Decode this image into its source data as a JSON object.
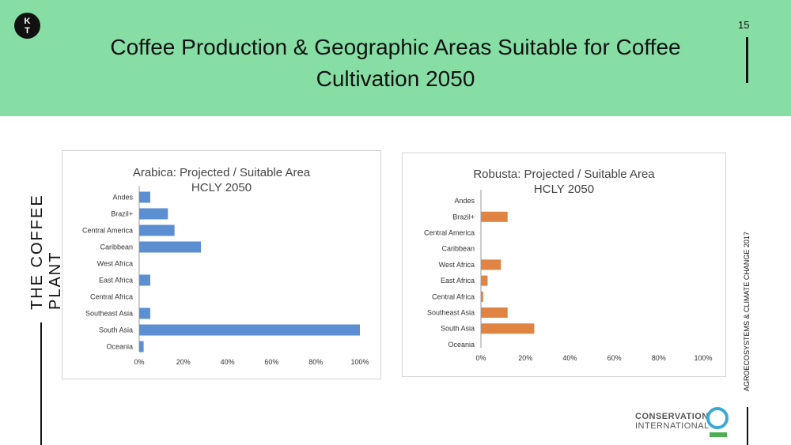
{
  "header": {
    "logo_line1": "K",
    "logo_line2": "T",
    "title": "Coffee Production & Geographic Areas Suitable for Coffee Cultivation 2050",
    "page_number": "15"
  },
  "sidebar": {
    "left_text": "THE COFFEE PLANT",
    "right_text": "AGROECOSYSTEMS & CLIMATE CHANGE 2017"
  },
  "footer_logo": {
    "line1": "CONSERVATION",
    "line2": "INTERNATIONAL"
  },
  "colors": {
    "header_bg": "#86dea5",
    "arabica_bar": "#5b8fd2",
    "robusta_bar": "#e08443"
  },
  "chart_data": [
    {
      "type": "bar",
      "orientation": "horizontal",
      "title_line1": "Arabica: Projected  / Suitable Area",
      "title_line2": "HCLY 2050",
      "categories": [
        "Andes",
        "Brazil+",
        "Central America",
        "Caribbean",
        "West Africa",
        "East Africa",
        "Central Africa",
        "Southeast Asia",
        "South Asia",
        "Oceania"
      ],
      "values": [
        5,
        13,
        16,
        28,
        0,
        5,
        0,
        5,
        100,
        2
      ],
      "xlim": [
        0,
        100
      ],
      "ticks": [
        "0%",
        "20%",
        "40%",
        "60%",
        "80%",
        "100%"
      ],
      "grid": false
    },
    {
      "type": "bar",
      "orientation": "horizontal",
      "title_line1": "Robusta: Projected / Suitable Area",
      "title_line2": "HCLY 2050",
      "categories": [
        "Andes",
        "Brazil+",
        "Central America",
        "Caribbean",
        "West Africa",
        "East Africa",
        "Central Africa",
        "Southeast Asia",
        "South Asia",
        "Oceania"
      ],
      "values": [
        0,
        12,
        0,
        0,
        9,
        3,
        1,
        12,
        24,
        0
      ],
      "xlim": [
        0,
        100
      ],
      "ticks": [
        "0%",
        "20%",
        "40%",
        "60%",
        "80%",
        "100%"
      ],
      "grid": false
    }
  ]
}
